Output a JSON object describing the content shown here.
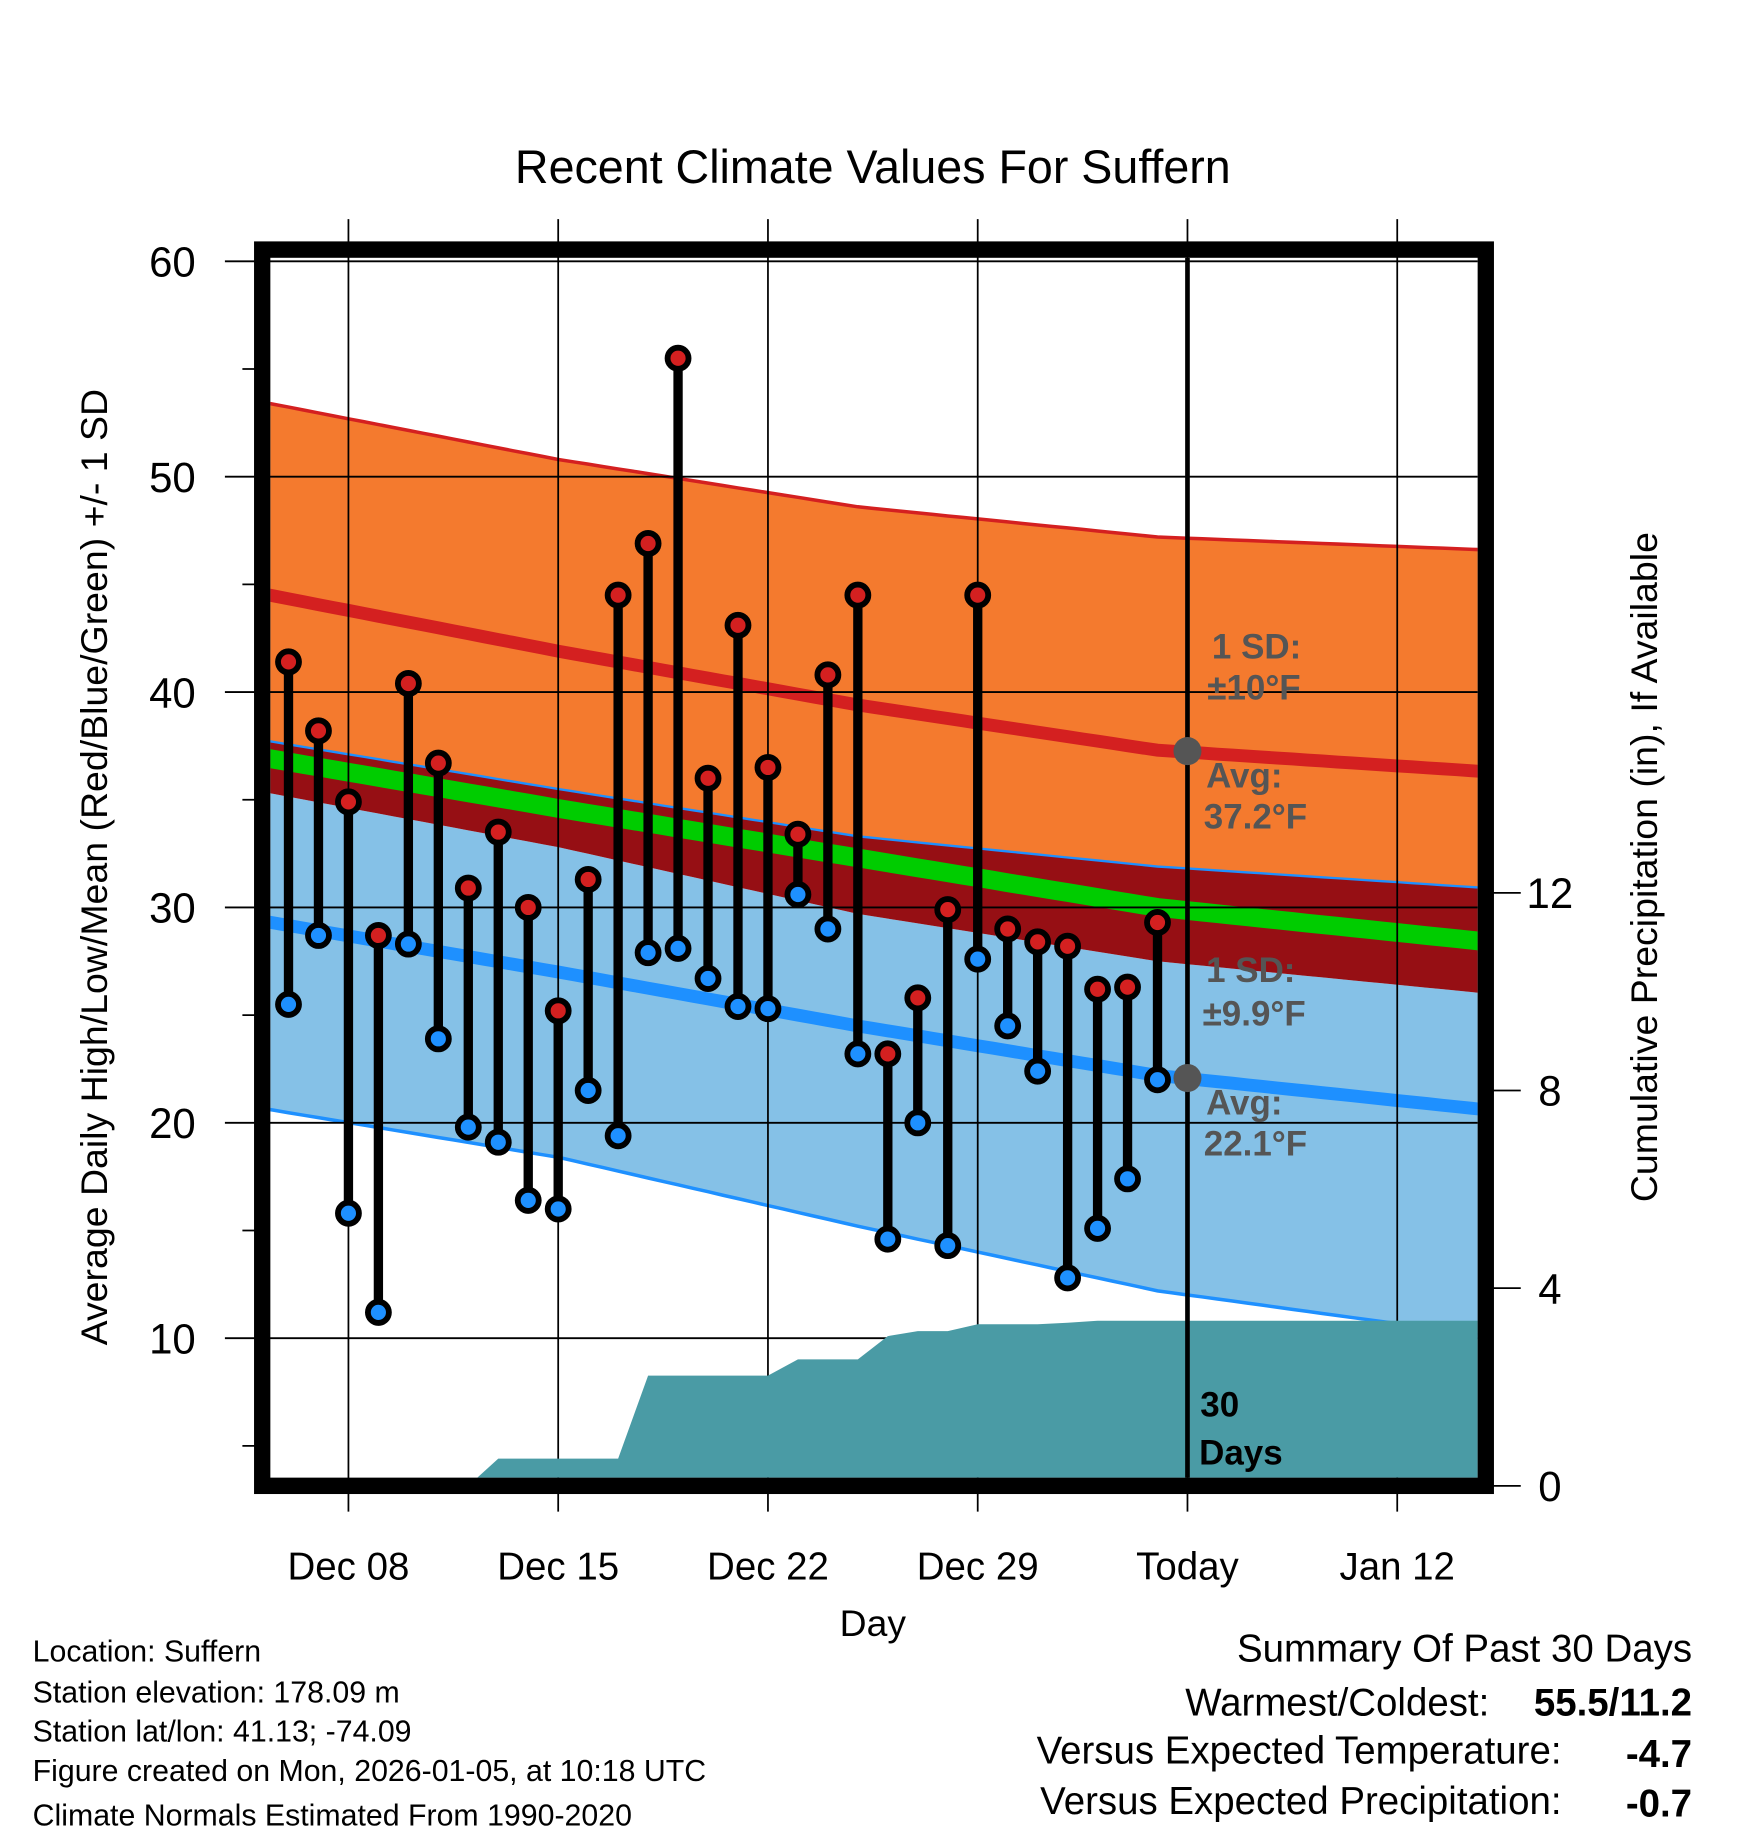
{
  "chart_data": {
    "type": "line",
    "title": "Recent Climate Values For Suffern",
    "xlabel": "Day",
    "ylabel": "Average Daily High/Low/Mean (Red/Blue/Green) +/- 1 SD",
    "ylabel_right": "Cumulative Precipitation (in), If Available",
    "ylim": [
      3.6,
      60
    ],
    "ylim_right": [
      0,
      12
    ],
    "yticks": [
      "10",
      "20",
      "30",
      "40",
      "50",
      "60"
    ],
    "yticks_right": [
      "0",
      "4",
      "8",
      "12"
    ],
    "xticks": [
      "Dec 08",
      "Dec 15",
      "Dec 22",
      "Dec 29",
      "Today",
      "Jan 12"
    ],
    "grid": true,
    "dates": [
      "Dec 06",
      "Dec 07",
      "Dec 08",
      "Dec 09",
      "Dec 10",
      "Dec 11",
      "Dec 12",
      "Dec 13",
      "Dec 14",
      "Dec 15",
      "Dec 16",
      "Dec 17",
      "Dec 18",
      "Dec 19",
      "Dec 20",
      "Dec 21",
      "Dec 22",
      "Dec 23",
      "Dec 24",
      "Dec 25",
      "Dec 26",
      "Dec 27",
      "Dec 28",
      "Dec 29",
      "Dec 30",
      "Dec 31",
      "Jan 01",
      "Jan 02",
      "Jan 03",
      "Jan 04"
    ],
    "series": [
      {
        "name": "Daily High",
        "color": "#d42020",
        "values": [
          41.4,
          38.2,
          34.9,
          28.7,
          40.4,
          36.7,
          30.9,
          33.5,
          30.0,
          25.2,
          31.3,
          44.5,
          46.9,
          55.5,
          36.0,
          43.1,
          36.5,
          33.4,
          40.8,
          44.5,
          23.2,
          25.8,
          29.9,
          44.5,
          29.0,
          28.4,
          28.2,
          26.2,
          26.3,
          29.3
        ]
      },
      {
        "name": "Daily Low",
        "color": "#1e90ff",
        "values": [
          25.5,
          28.7,
          15.8,
          11.2,
          28.3,
          23.9,
          19.8,
          19.1,
          16.4,
          16.0,
          21.5,
          19.4,
          27.9,
          28.1,
          26.7,
          25.4,
          25.3,
          30.6,
          29.0,
          23.2,
          14.6,
          20.0,
          14.3,
          27.6,
          24.5,
          22.4,
          12.8,
          15.1,
          17.4,
          22.0
        ]
      },
      {
        "name": "Cumulative Precipitation",
        "color": "#4a9ba5",
        "values": [
          0,
          0,
          0,
          0,
          0,
          0,
          0,
          0.55,
          0.55,
          0.55,
          0.55,
          0.55,
          2.23,
          2.23,
          2.23,
          2.23,
          2.23,
          2.56,
          2.56,
          2.56,
          3.03,
          3.13,
          3.13,
          3.27,
          3.27,
          3.27,
          3.3,
          3.34,
          3.34,
          3.34
        ]
      }
    ],
    "normals": {
      "dates": [
        "Dec 05",
        "Dec 15",
        "Dec 25",
        "Jan 04",
        "Jan 15"
      ],
      "high_plus_sd": [
        53.5,
        50.8,
        48.6,
        47.2,
        46.6
      ],
      "high_avg": [
        44.6,
        41.9,
        39.4,
        37.3,
        36.3
      ],
      "high_minus_sd": [
        37.8,
        35.5,
        33.3,
        31.9,
        30.9
      ],
      "mean": [
        37.0,
        34.6,
        32.3,
        30.0,
        28.4
      ],
      "low_plus_sd": [
        35.4,
        32.8,
        29.7,
        27.5,
        26.0
      ],
      "low_avg": [
        29.4,
        27.0,
        24.5,
        22.2,
        20.6
      ],
      "low_minus_sd": [
        20.7,
        18.4,
        15.2,
        12.2,
        10.1
      ]
    },
    "annotations": {
      "high_sd_line1": "1 SD:",
      "high_sd_line2": "±10°F",
      "high_avg_line1": "Avg:",
      "high_avg_line2": "37.2°F",
      "low_sd_line1": "1 SD:",
      "low_sd_line2": "±9.9°F",
      "low_avg_line1": "Avg:",
      "low_avg_line2": "22.1°F",
      "days_line1": "30",
      "days_line2": "Days"
    },
    "today_values": {
      "high_avg": 37.2,
      "low_avg": 22.1
    }
  },
  "footer": {
    "location": "Location: Suffern",
    "elevation": "Station elevation: 178.09 m",
    "latlon": "Station lat/lon: 41.13; -74.09",
    "created": "Figure created on Mon, 2026-01-05, at 10:18 UTC",
    "normals": "Climate Normals Estimated From 1990-2020"
  },
  "summary": {
    "title": "Summary Of Past 30 Days",
    "warmest_label": "Warmest/Coldest:",
    "warmest_value": "55.5/11.2",
    "temp_label": "Versus Expected Temperature:",
    "temp_value": "-4.7",
    "temp_color": "#1e90ff",
    "precip_label": "Versus Expected Precipitation:",
    "precip_value": "-0.7",
    "precip_color": "#a0522d"
  }
}
